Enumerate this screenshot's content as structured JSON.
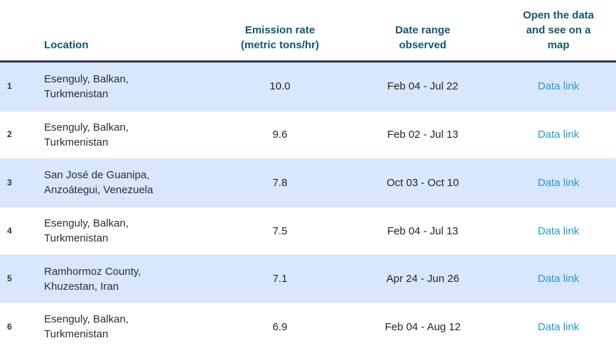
{
  "table": {
    "columns": {
      "location": "Location",
      "emission_rate": "Emission rate (metric tons/hr)",
      "date_range": "Date range observed",
      "map_link": "Open the data and see on a map"
    },
    "link_label": "Data link",
    "rows": [
      {
        "rank": "1",
        "location": "Esenguly, Balkan, Turkmenistan",
        "rate": "10.0",
        "date_range": "Feb 04 - Jul 22"
      },
      {
        "rank": "2",
        "location": "Esenguly, Balkan, Turkmenistan",
        "rate": "9.6",
        "date_range": "Feb 02 - Jul 13"
      },
      {
        "rank": "3",
        "location": "San José de Guanipa, Anzoátegui, Venezuela",
        "rate": "7.8",
        "date_range": "Oct 03 - Oct 10"
      },
      {
        "rank": "4",
        "location": "Esenguly, Balkan, Turkmenistan",
        "rate": "7.5",
        "date_range": "Feb 04 - Jul 13"
      },
      {
        "rank": "5",
        "location": "Ramhormoz County, Khuzestan, Iran",
        "rate": "7.1",
        "date_range": "Apr 24 - Jun 26"
      },
      {
        "rank": "6",
        "location": "Esenguly, Balkan, Turkmenistan",
        "rate": "6.9",
        "date_range": "Feb 04 - Aug 12"
      }
    ]
  },
  "colors": {
    "header_text": "#17566B",
    "header_border": "#323A45",
    "alt_row_background": "#D8E7FB",
    "link_text": "#2499CE",
    "body_text": "#212529"
  }
}
